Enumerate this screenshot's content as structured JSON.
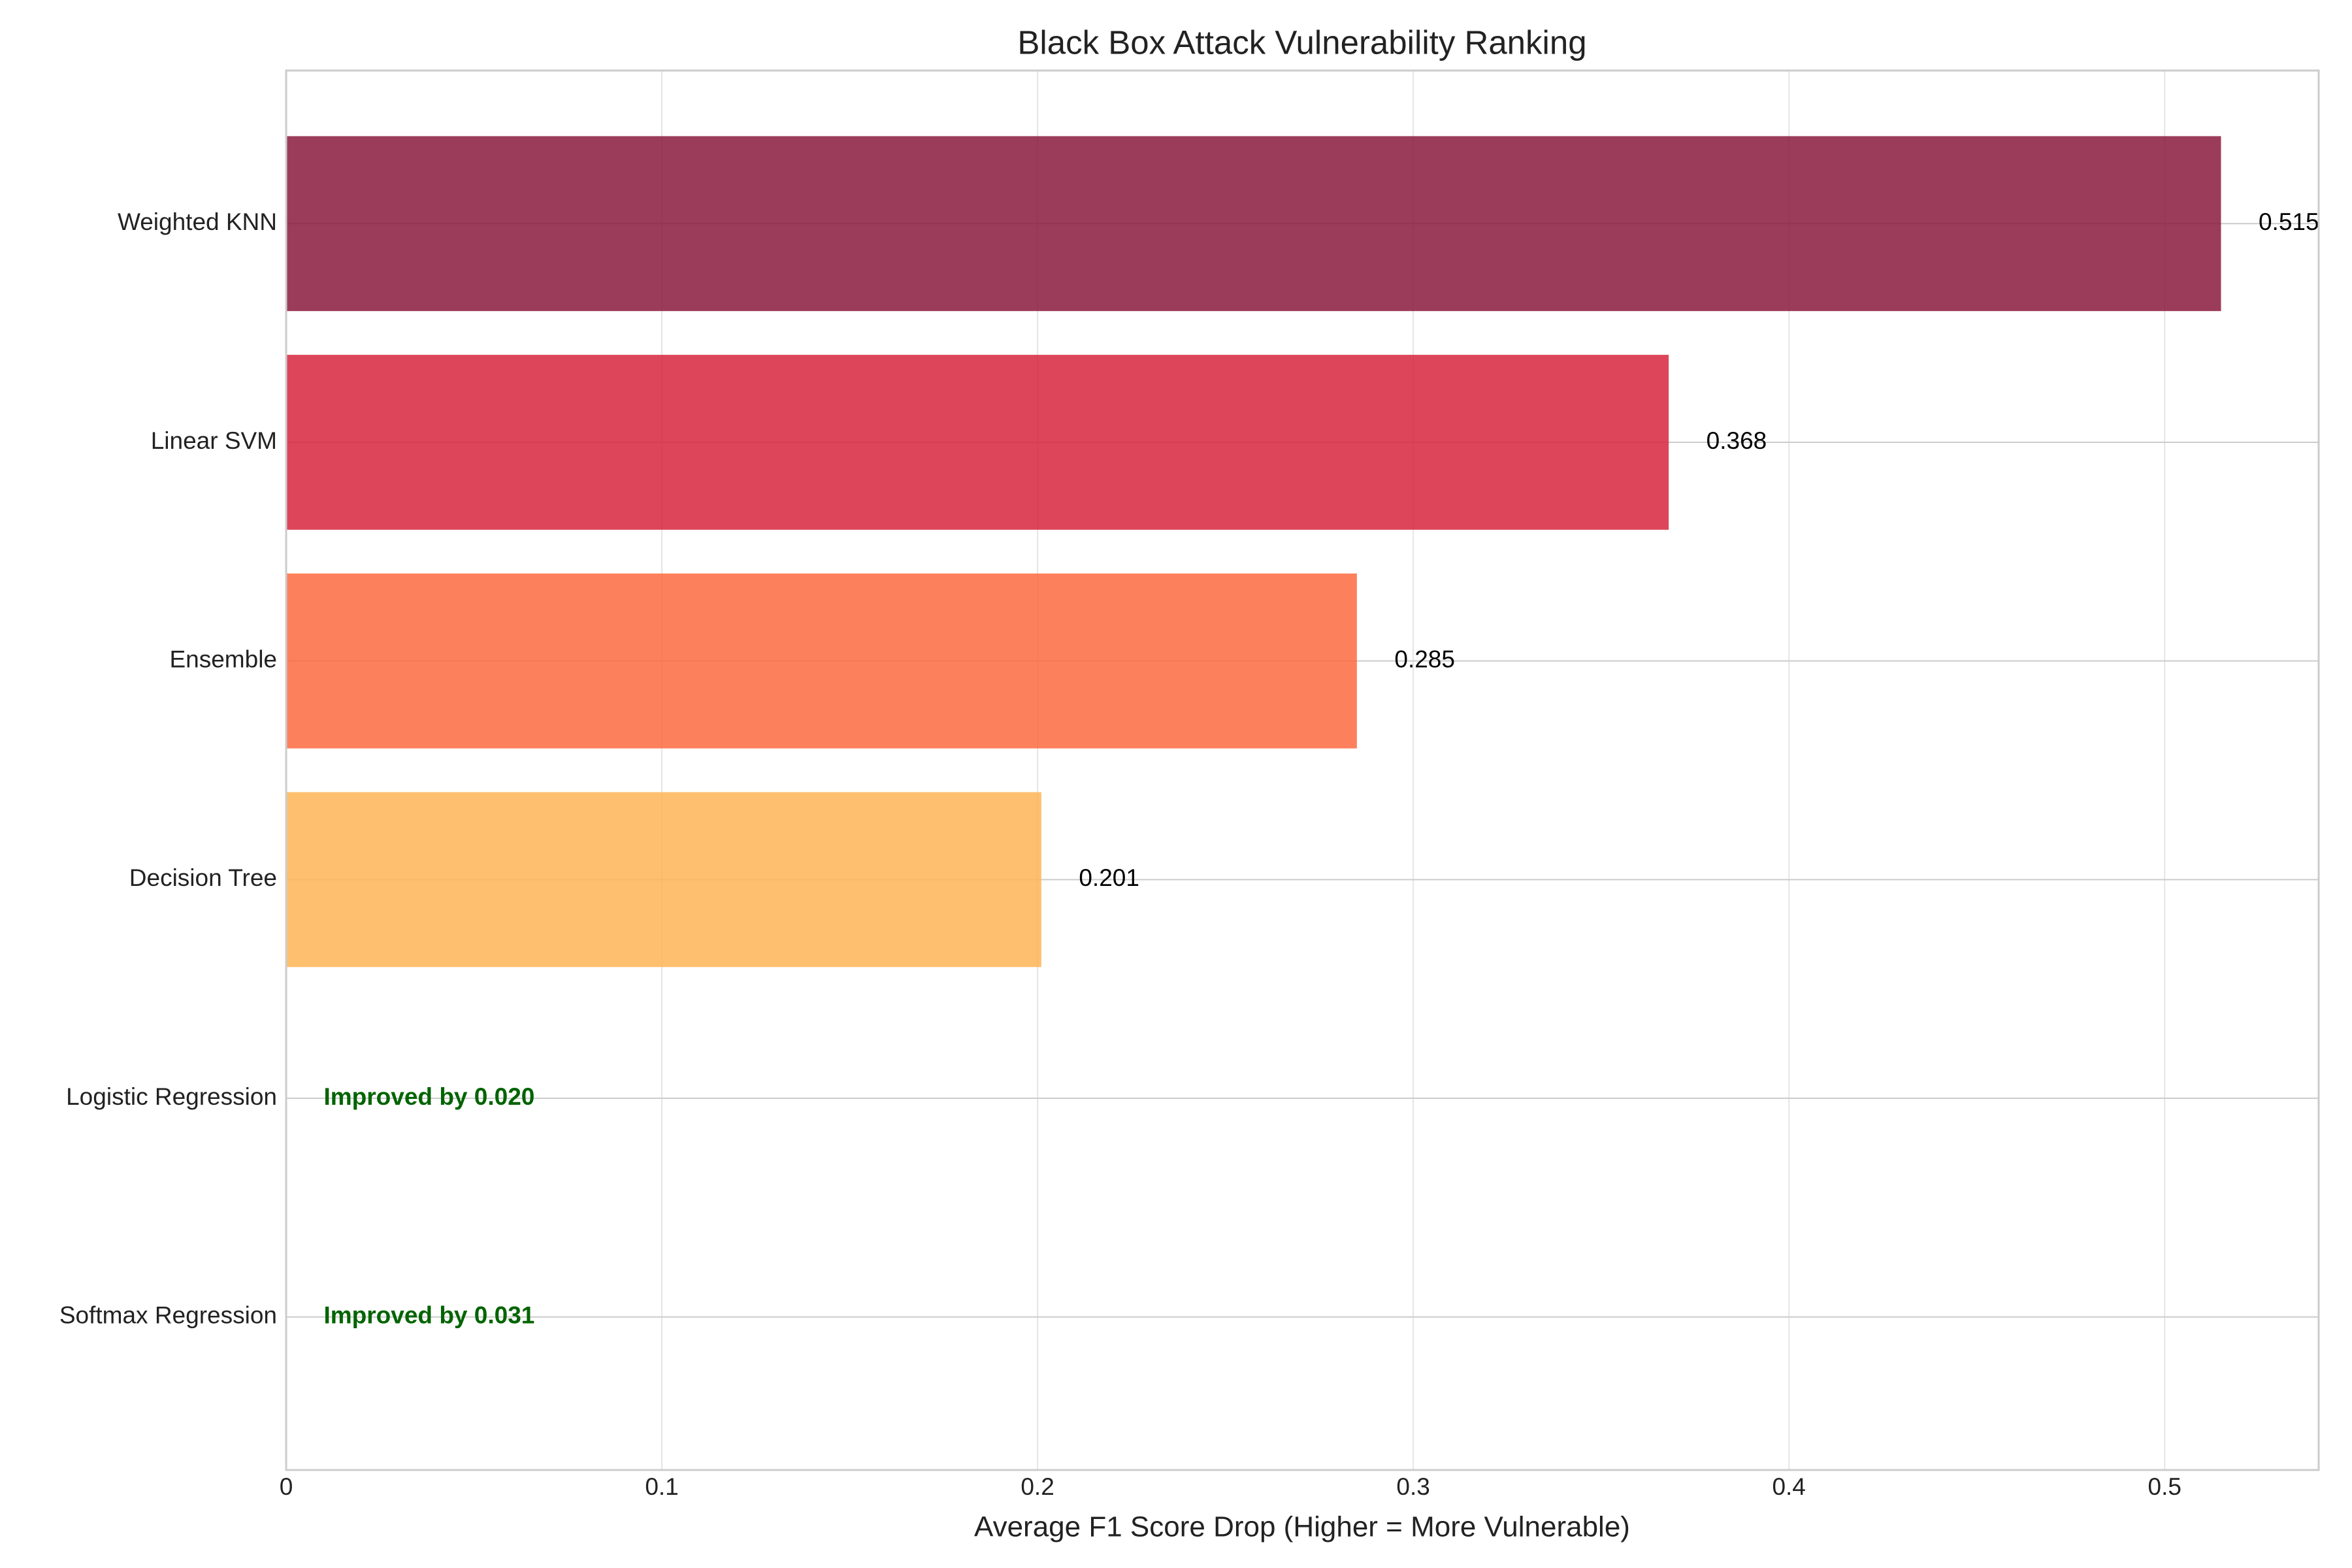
{
  "chart_data": {
    "type": "barh",
    "title": "Black Box Attack Vulnerability Ranking",
    "xlabel": "Average F1 Score Drop (Higher = More Vulnerable)",
    "categories": [
      "Weighted KNN",
      "Linear SVM",
      "Ensemble",
      "Decision Tree",
      "Logistic Regression",
      "Softmax Regression"
    ],
    "values": [
      0.515,
      0.368,
      0.285,
      0.201,
      -0.02,
      -0.031
    ],
    "value_labels": [
      "0.515",
      "0.368",
      "0.285",
      "0.201",
      "Improved by 0.020",
      "Improved by 0.031"
    ],
    "colors": [
      "#8b1a3e",
      "#d7263d",
      "#fd6a40",
      "#feb556",
      "#fee491",
      "#ffffcc"
    ],
    "improved_label_color": "#006400",
    "xlim": [
      0,
      0.541
    ],
    "xticks": [
      0.0,
      0.1,
      0.2,
      0.3,
      0.4,
      0.5
    ],
    "grid": true
  }
}
